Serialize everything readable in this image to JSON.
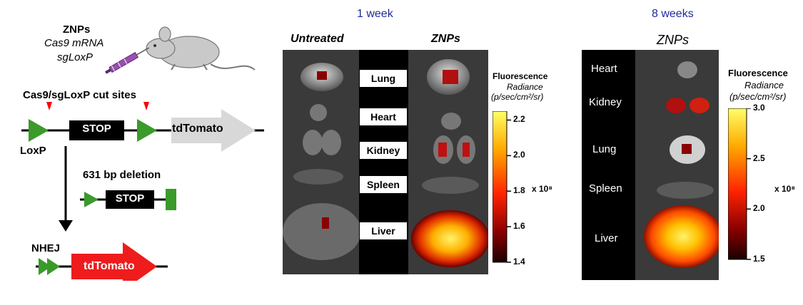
{
  "left": {
    "title": "ZNPs",
    "subtitle1": "Cas9 mRNA",
    "subtitle2": "sgLoxP",
    "cut_sites": "Cas9/sgLoxP cut sites",
    "stop1": "STOP",
    "tdtomato_gray": "tdTomato",
    "loxp": "LoxP",
    "deletion": "631 bp deletion",
    "stop2": "STOP",
    "nhej": "NHEJ",
    "tdtomato_red": "tdTomato",
    "colors": {
      "loxp": "#3a9a2a",
      "stop": "#000000",
      "tdtomato_gray": "#d8d8d8",
      "tdtomato_red": "#ee1c1c",
      "arrow_tip": "#ff0000"
    }
  },
  "week1": {
    "heading": "1 week",
    "untreated": "Untreated",
    "znps": "ZNPs",
    "organs": [
      "Lung",
      "Heart",
      "Kidney",
      "Spleen",
      "Liver"
    ],
    "colorbar": {
      "title": "Fluorescence",
      "unit1": "Radiance",
      "unit2": "(p/sec/cm²/sr)",
      "ticks": [
        "2.2",
        "2.0",
        "1.8",
        "1.6",
        "1.4"
      ],
      "ticks_values": [
        2.2,
        2.0,
        1.8,
        1.6,
        1.4
      ],
      "range": [
        1.4,
        2.25
      ],
      "exponent": "x 10⁸"
    }
  },
  "week8": {
    "heading": "8 weeks",
    "znps": "ZNPs",
    "organs": [
      "Heart",
      "Kidney",
      "Lung",
      "Spleen",
      "Liver"
    ],
    "colorbar": {
      "title": "Fluorescence",
      "unit1": "Radiance",
      "unit2": "(p/sec/cm²/sr)",
      "ticks": [
        "3.0",
        "2.5",
        "2.0",
        "1.5"
      ],
      "ticks_values": [
        3.0,
        2.5,
        2.0,
        1.5
      ],
      "range": [
        1.5,
        3.0
      ],
      "exponent": "x 10⁸"
    }
  }
}
